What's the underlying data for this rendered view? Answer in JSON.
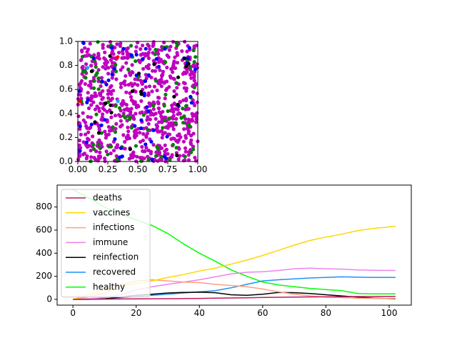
{
  "chart_data": [
    {
      "type": "scatter",
      "title": "",
      "xlabel": "",
      "ylabel": "",
      "xlim": [
        0,
        1
      ],
      "ylim": [
        0,
        1
      ],
      "xticks": [
        "0.00",
        "0.25",
        "0.50",
        "0.75",
        "1.00"
      ],
      "yticks": [
        "0.0",
        "0.2",
        "0.4",
        "0.6",
        "0.8",
        "1.0"
      ],
      "grid": false,
      "series": [
        {
          "color": "#bf00bf",
          "count": 760
        },
        {
          "color": "#008000",
          "count": 95
        },
        {
          "color": "#0000ff",
          "count": 55
        },
        {
          "color": "#000000",
          "count": 20
        },
        {
          "color": "#ff0000",
          "count": 2
        },
        {
          "color": "#1f9fff",
          "count": 2
        }
      ]
    },
    {
      "type": "line",
      "title": "",
      "xlabel": "",
      "ylabel": "",
      "xlim": [
        -5,
        107
      ],
      "ylim": [
        -50,
        990
      ],
      "xticks": [
        0,
        20,
        40,
        60,
        80,
        100
      ],
      "yticks": [
        0,
        200,
        400,
        600,
        800
      ],
      "grid": false,
      "legend_position": "upper-left",
      "x": [
        0,
        5,
        10,
        15,
        20,
        25,
        30,
        35,
        40,
        45,
        50,
        55,
        60,
        65,
        70,
        75,
        80,
        85,
        90,
        95,
        102
      ],
      "series": [
        {
          "name": "deaths",
          "color": "#c2185b",
          "values": [
            0,
            1,
            2,
            3,
            4,
            5,
            6,
            7,
            8,
            10,
            12,
            14,
            16,
            18,
            20,
            21,
            22,
            23,
            24,
            25,
            26
          ]
        },
        {
          "name": "vaccines",
          "color": "#ffd700",
          "values": [
            0,
            40,
            80,
            110,
            135,
            160,
            190,
            215,
            245,
            270,
            305,
            340,
            380,
            425,
            470,
            510,
            540,
            565,
            595,
            615,
            632
          ]
        },
        {
          "name": "infections",
          "color": "#ffa07a",
          "values": [
            0,
            20,
            55,
            120,
            160,
            170,
            160,
            150,
            145,
            130,
            120,
            110,
            90,
            65,
            45,
            30,
            20,
            15,
            10,
            8,
            8
          ]
        },
        {
          "name": "immune",
          "color": "#ee82ee",
          "values": [
            0,
            5,
            15,
            40,
            80,
            110,
            130,
            150,
            170,
            195,
            220,
            235,
            240,
            250,
            265,
            270,
            265,
            262,
            255,
            252,
            250
          ]
        },
        {
          "name": "reinfection",
          "color": "#000000",
          "values": [
            0,
            0,
            5,
            20,
            35,
            45,
            55,
            60,
            62,
            58,
            40,
            35,
            45,
            60,
            58,
            50,
            40,
            30,
            20,
            10,
            5
          ]
        },
        {
          "name": "recovered",
          "color": "#1e90ff",
          "values": [
            0,
            0,
            5,
            15,
            25,
            35,
            45,
            55,
            65,
            75,
            100,
            130,
            160,
            170,
            178,
            185,
            190,
            195,
            192,
            190,
            190
          ]
        },
        {
          "name": "healthy",
          "color": "#00ff00",
          "values": [
            950,
            880,
            800,
            740,
            690,
            640,
            570,
            480,
            400,
            330,
            255,
            200,
            150,
            125,
            110,
            95,
            85,
            75,
            50,
            48,
            48
          ]
        }
      ]
    }
  ]
}
